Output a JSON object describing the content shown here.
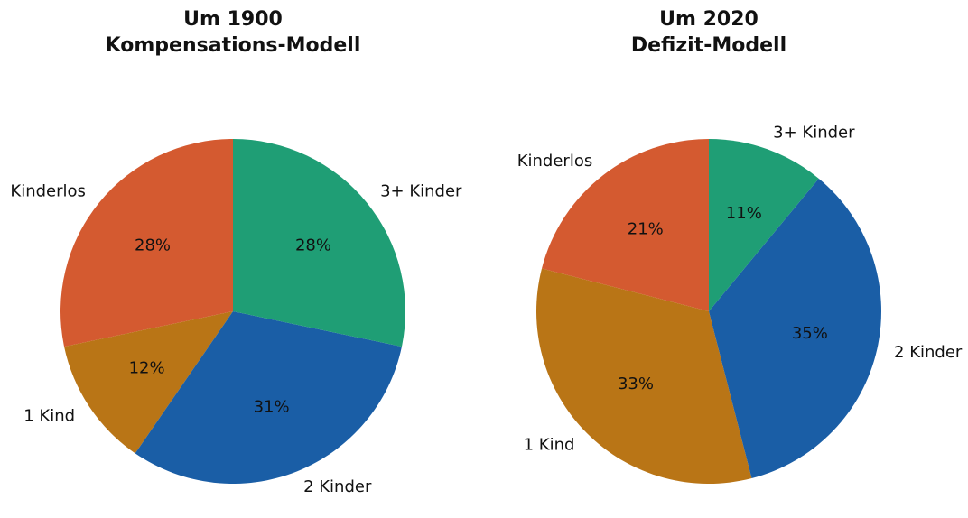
{
  "chart_data": [
    {
      "type": "pie",
      "title": [
        "Um 1900",
        "Kompensations-Modell"
      ],
      "categories": [
        "Kinderlos",
        "1 Kind",
        "2 Kinder",
        "3+ Kinder"
      ],
      "values": [
        28,
        12,
        31,
        28
      ],
      "value_labels": [
        "28%",
        "12%",
        "31%",
        "28%"
      ],
      "colors": [
        "#d45a30",
        "#b97516",
        "#1a5ea6",
        "#1f9e75"
      ]
    },
    {
      "type": "pie",
      "title": [
        "Um 2020",
        "Defizit-Modell"
      ],
      "categories": [
        "Kinderlos",
        "1 Kind",
        "2 Kinder",
        "3+ Kinder"
      ],
      "values": [
        21,
        33,
        35,
        11
      ],
      "value_labels": [
        "21%",
        "33%",
        "35%",
        "11%"
      ],
      "colors": [
        "#d45a30",
        "#b97516",
        "#1a5ea6",
        "#1f9e75"
      ]
    }
  ]
}
